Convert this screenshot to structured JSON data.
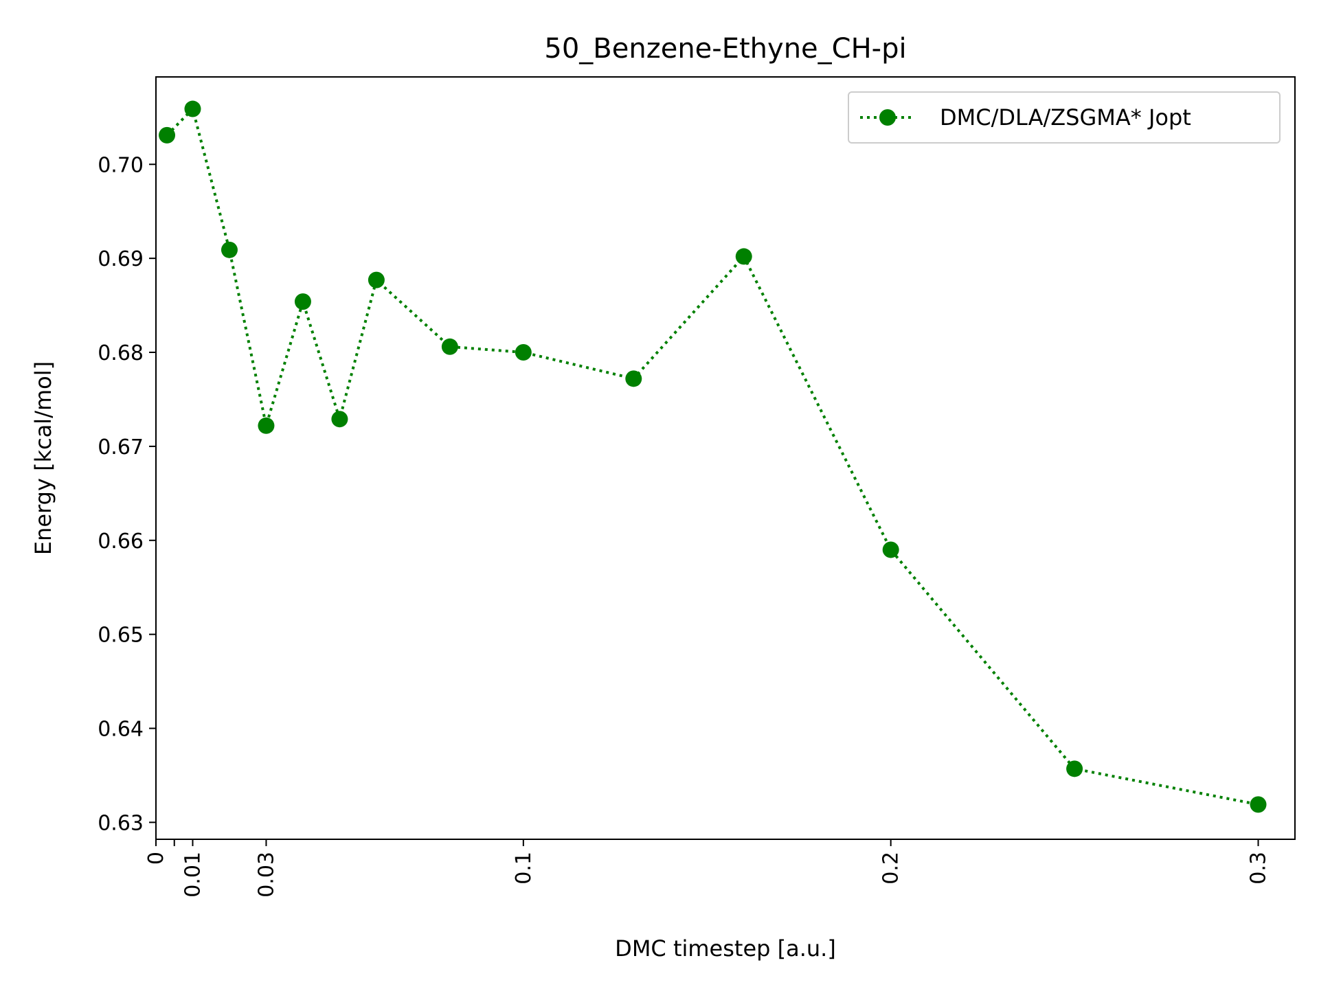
{
  "chart_data": {
    "type": "line",
    "title": "50_Benzene-Ethyne_CH-pi",
    "xlabel": "DMC timestep [a.u.]",
    "ylabel": "Energy [kcal/mol]",
    "xlim": [
      0,
      0.31
    ],
    "ylim": [
      0.6282,
      0.7093
    ],
    "xticks": [
      0,
      0.005,
      0.01,
      0.03,
      0.1,
      0.2,
      0.3
    ],
    "xtick_labels": [
      "0",
      "",
      "0.01",
      "0.03",
      "0.1",
      "0.2",
      "0.3"
    ],
    "yticks": [
      0.63,
      0.64,
      0.65,
      0.66,
      0.67,
      0.68,
      0.69,
      0.7
    ],
    "ytick_labels": [
      "0.63",
      "0.64",
      "0.65",
      "0.66",
      "0.67",
      "0.68",
      "0.69",
      "0.70"
    ],
    "grid": false,
    "legend_position": "top-right",
    "series": [
      {
        "name": "DMC/DLA/ZSGMA* Jopt",
        "color": "#008000",
        "line_style": "dotted",
        "marker": "circle",
        "x": [
          0.003,
          0.01,
          0.02,
          0.03,
          0.04,
          0.05,
          0.06,
          0.08,
          0.1,
          0.13,
          0.16,
          0.2,
          0.25,
          0.3
        ],
        "y": [
          0.7031,
          0.7059,
          0.6909,
          0.6722,
          0.6854,
          0.6729,
          0.6877,
          0.6806,
          0.68,
          0.6772,
          0.6902,
          0.659,
          0.6357,
          0.6319
        ]
      }
    ]
  }
}
